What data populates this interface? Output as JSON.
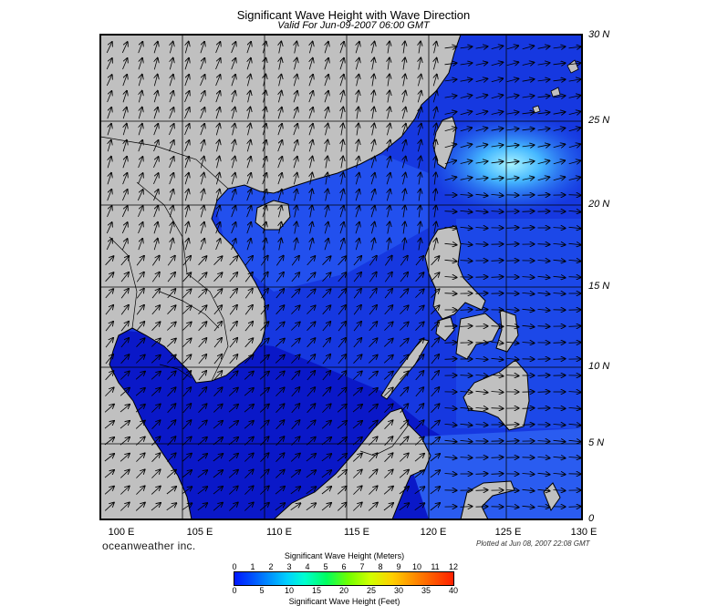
{
  "title": "Significant Wave Height with Wave Direction",
  "subtitle": "Valid For Jun-09-2007 06:00 GMT",
  "map": {
    "region": "South China Sea / Philippine Sea",
    "lon_range": [
      100,
      130
    ],
    "lat_range": [
      0,
      30
    ],
    "colors": {
      "land": "#c0c0c0",
      "sea_low": "#0a10c8",
      "sea_mid": "#1e46e6",
      "sea_high": "#3ca0ff",
      "peak": "#9ff0ff"
    }
  },
  "lat_labels": [
    "30 N",
    "25 N",
    "20 N",
    "15 N",
    "10 N",
    "5 N",
    "0"
  ],
  "lon_labels": [
    "100 E",
    "105 E",
    "110 E",
    "115 E",
    "120 E",
    "125 E",
    "130 E"
  ],
  "brand": "oceanweather inc.",
  "plotted": "Plotted at Jun 08, 2007 22:08 GMT",
  "legend": {
    "title_m": "Significant Wave Height (Meters)",
    "title_f": "Significant Wave Height (Feet)",
    "meters": [
      "0",
      "1",
      "2",
      "3",
      "4",
      "5",
      "6",
      "7",
      "8",
      "9",
      "10",
      "11",
      "12"
    ],
    "feet": [
      "0",
      "5",
      "10",
      "15",
      "20",
      "25",
      "30",
      "35",
      "40"
    ]
  }
}
